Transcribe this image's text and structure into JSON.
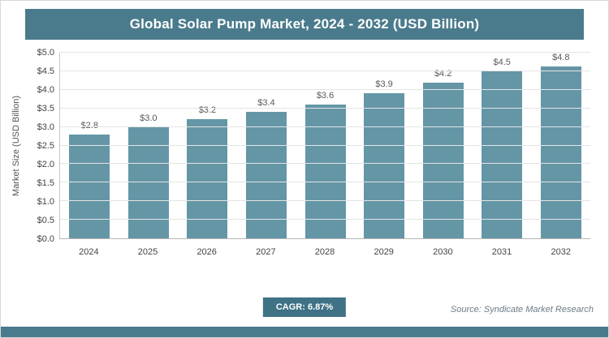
{
  "chart_data": {
    "type": "bar",
    "title": "Global Solar Pump Market, 2024 - 2032 (USD Billion)",
    "categories": [
      "2024",
      "2025",
      "2026",
      "2027",
      "2028",
      "2029",
      "2030",
      "2031",
      "2032"
    ],
    "values": [
      2.8,
      3.0,
      3.2,
      3.4,
      3.6,
      3.9,
      4.2,
      4.5,
      4.8
    ],
    "value_labels": [
      "$2.8",
      "$3.0",
      "$3.2",
      "$3.4",
      "$3.6",
      "$3.9",
      "$4.2",
      "$4.5",
      "$4.8"
    ],
    "xlabel": "",
    "ylabel": "Market Size (USD Billion)",
    "ylim": [
      0,
      5
    ],
    "ytick_step": 0.5,
    "ytick_labels": [
      "$0.0",
      "$0.5",
      "$1.0",
      "$1.5",
      "$2.0",
      "$2.5",
      "$3.0",
      "$3.5",
      "$4.0",
      "$4.5",
      "$5.0"
    ],
    "grid": true,
    "legend": "none"
  },
  "footer": {
    "cagr_label": "CAGR: 6.87%",
    "source": "Source: Syndicate Market Research"
  },
  "colors": {
    "banner": "#4a7b8c",
    "bar": "#6496a6",
    "badge": "#3f7285",
    "strip": "#4a7b8c",
    "gridline": "#e4e4e4"
  }
}
